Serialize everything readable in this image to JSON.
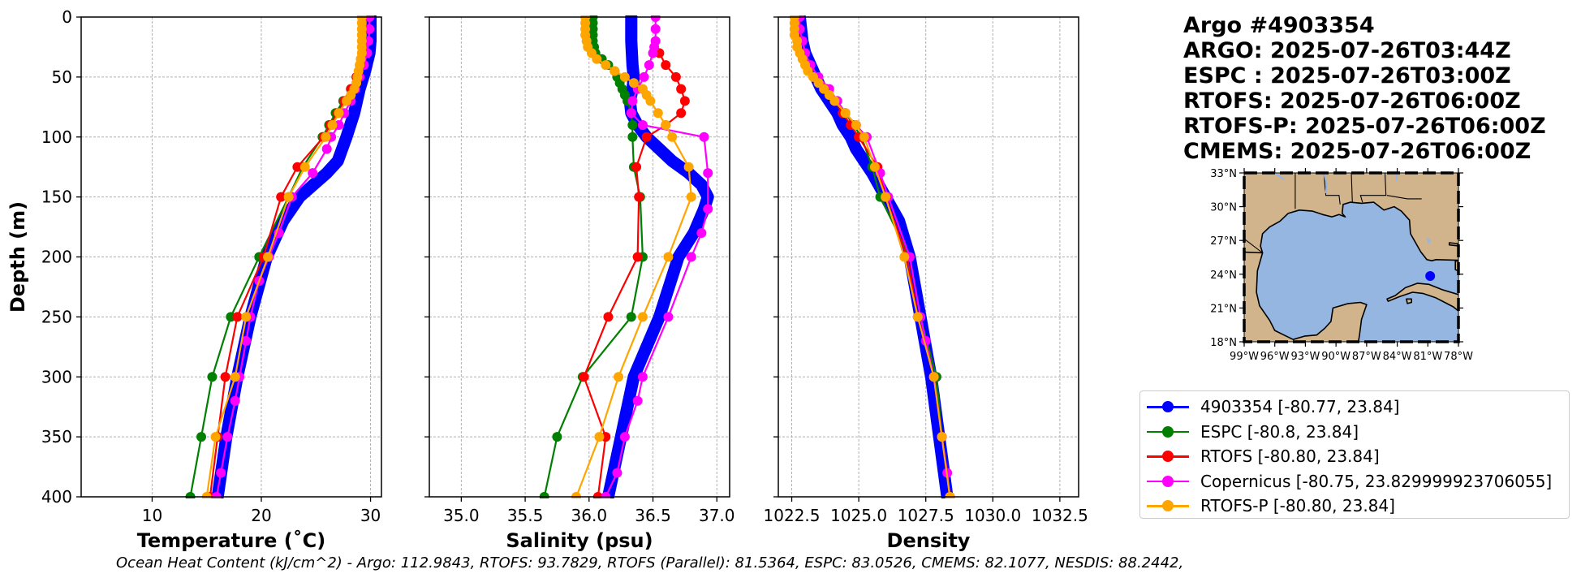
{
  "title": {
    "lines": [
      "Argo #4903354",
      "ARGO: 2025-07-26T03:44Z",
      "ESPC : 2025-07-26T03:00Z",
      "RTOFS: 2025-07-26T06:00Z",
      "RTOFS-P: 2025-07-26T06:00Z",
      "CMEMS: 2025-07-26T06:00Z"
    ]
  },
  "legend": {
    "items": [
      {
        "label": "4903354 [-80.77, 23.84]",
        "color": "#0000ff"
      },
      {
        "label": "ESPC [-80.8, 23.84]",
        "color": "#008000"
      },
      {
        "label": "RTOFS [-80.80, 23.84]",
        "color": "#ff0000"
      },
      {
        "label": "Copernicus [-80.75, 23.829999923706055]",
        "color": "#ff00ff"
      },
      {
        "label": "RTOFS-P [-80.80, 23.84]",
        "color": "#ffa500"
      }
    ]
  },
  "footer": {
    "ohc_text": "Ocean Heat Content (kJ/cm^2) - Argo: 112.9843,  RTOFS: 93.7829,  RTOFS (Parallel): 81.5364,  ESPC: 83.0526,  CMEMS: 82.1077,  NESDIS: 88.2442,"
  },
  "map": {
    "lat_labels": [
      "33°N",
      "30°N",
      "27°N",
      "24°N",
      "21°N",
      "18°N"
    ],
    "lat_values": [
      33,
      30,
      27,
      24,
      21,
      18
    ],
    "lon_labels": [
      "99°W",
      "96°W",
      "93°W",
      "90°W",
      "87°W",
      "84°W",
      "81°W",
      "78°W"
    ],
    "lon_values": [
      -99,
      -96,
      -93,
      -90,
      -87,
      -84,
      -81,
      -78
    ],
    "marker": {
      "lon": -80.77,
      "lat": 23.84,
      "color": "#0000ff"
    },
    "ocean_color": "#95b6e0",
    "land_color": "#d2b48c"
  },
  "chart_data": [
    {
      "type": "line",
      "xlabel": "Temperature (˚C)",
      "ylabel": "Depth (m)",
      "xlim": [
        3.5,
        31
      ],
      "ylim": [
        400,
        0
      ],
      "xticks": [
        10,
        20,
        30
      ],
      "xtick_labels": [
        "10",
        "20",
        "30"
      ],
      "yticks": [
        0,
        50,
        100,
        150,
        200,
        250,
        300,
        350,
        400
      ],
      "ytick_labels": [
        "0",
        "50",
        "100",
        "150",
        "200",
        "250",
        "300",
        "350",
        "400"
      ],
      "series": [
        {
          "name": "4903354",
          "color": "#0000ff",
          "dense": true,
          "depth": [
            0,
            20,
            30,
            45,
            60,
            80,
            100,
            120,
            130,
            150,
            170,
            200,
            250,
            300,
            350,
            400
          ],
          "values": [
            30.0,
            30.0,
            29.9,
            29.5,
            29.0,
            28.5,
            27.8,
            27.0,
            26.0,
            23.5,
            22.0,
            20.5,
            19.0,
            17.8,
            16.8,
            16.0
          ]
        },
        {
          "name": "ESPC",
          "color": "#008000",
          "dense": false,
          "depth": [
            0,
            10,
            20,
            30,
            40,
            50,
            60,
            70,
            80,
            90,
            100,
            125,
            150,
            200,
            250,
            300,
            350,
            400
          ],
          "values": [
            29.5,
            29.5,
            29.5,
            29.4,
            29.2,
            28.8,
            28.2,
            27.5,
            26.8,
            26.2,
            25.6,
            23.8,
            22.5,
            19.8,
            17.2,
            15.5,
            14.5,
            13.5
          ]
        },
        {
          "name": "RTOFS",
          "color": "#ff0000",
          "dense": false,
          "depth": [
            0,
            10,
            20,
            30,
            40,
            50,
            60,
            70,
            80,
            90,
            100,
            125,
            150,
            200,
            250,
            300,
            350,
            400
          ],
          "values": [
            29.5,
            29.5,
            29.4,
            29.3,
            29.1,
            28.7,
            28.2,
            27.6,
            27.0,
            26.3,
            25.7,
            23.3,
            21.8,
            20.2,
            17.8,
            16.7,
            16.0,
            15.3
          ]
        },
        {
          "name": "Copernicus",
          "color": "#ff00ff",
          "dense": false,
          "depth": [
            0,
            10,
            20,
            30,
            40,
            50,
            60,
            70,
            80,
            90,
            100,
            110,
            130,
            150,
            180,
            200,
            220,
            250,
            270,
            300,
            320,
            350,
            380,
            400
          ],
          "values": [
            29.9,
            29.9,
            29.8,
            29.7,
            29.4,
            29.0,
            28.6,
            28.2,
            27.6,
            27.1,
            26.4,
            26.0,
            24.7,
            22.8,
            21.6,
            20.7,
            19.8,
            19.0,
            18.6,
            18.0,
            17.6,
            16.9,
            16.3,
            15.9
          ]
        },
        {
          "name": "RTOFS-P",
          "color": "#ffa500",
          "dense": false,
          "depth": [
            0,
            5,
            10,
            15,
            20,
            25,
            30,
            35,
            40,
            45,
            50,
            55,
            60,
            65,
            70,
            80,
            90,
            100,
            125,
            150,
            200,
            250,
            300,
            350,
            400
          ],
          "values": [
            29.2,
            29.2,
            29.2,
            29.2,
            29.2,
            29.2,
            29.2,
            29.1,
            29.0,
            28.9,
            28.8,
            28.7,
            28.5,
            28.2,
            27.8,
            27.1,
            26.5,
            25.9,
            24.0,
            22.5,
            20.6,
            18.6,
            17.6,
            15.8,
            15.0
          ]
        }
      ]
    },
    {
      "type": "line",
      "xlabel": "Salinity (psu)",
      "ylabel": "",
      "xlim": [
        34.75,
        37.1
      ],
      "ylim": [
        400,
        0
      ],
      "xticks": [
        35.0,
        35.5,
        36.0,
        36.5,
        37.0
      ],
      "xtick_labels": [
        "35.0",
        "35.5",
        "36.0",
        "36.5",
        "37.0"
      ],
      "yticks": [
        0,
        50,
        100,
        150,
        200,
        250,
        300,
        350,
        400
      ],
      "ytick_labels": [
        "",
        "",
        "",
        "",
        "",
        "",
        "",
        "",
        ""
      ],
      "series": [
        {
          "name": "4903354",
          "color": "#0000ff",
          "dense": true,
          "depth": [
            0,
            20,
            40,
            50,
            60,
            70,
            80,
            90,
            100,
            110,
            120,
            130,
            140,
            150,
            160,
            180,
            200,
            250,
            300,
            350,
            400
          ],
          "values": [
            36.33,
            36.33,
            36.34,
            36.35,
            36.34,
            36.32,
            36.33,
            36.38,
            36.45,
            36.55,
            36.65,
            36.78,
            36.88,
            36.93,
            36.9,
            36.82,
            36.7,
            36.55,
            36.35,
            36.25,
            36.15
          ]
        },
        {
          "name": "ESPC",
          "color": "#008000",
          "dense": false,
          "depth": [
            0,
            5,
            10,
            15,
            20,
            25,
            30,
            35,
            40,
            45,
            50,
            55,
            60,
            65,
            70,
            80,
            90,
            100,
            125,
            150,
            200,
            250,
            300,
            350,
            400
          ],
          "values": [
            36.03,
            36.03,
            36.03,
            36.03,
            36.03,
            36.04,
            36.05,
            36.1,
            36.15,
            36.2,
            36.22,
            36.24,
            36.26,
            36.28,
            36.3,
            36.33,
            36.34,
            36.34,
            36.35,
            36.4,
            36.42,
            36.33,
            35.95,
            35.75,
            35.65
          ]
        },
        {
          "name": "RTOFS",
          "color": "#ff0000",
          "dense": false,
          "depth": [
            30,
            40,
            50,
            60,
            70,
            80,
            90,
            100,
            125,
            150,
            200,
            250,
            300,
            350,
            400
          ],
          "values": [
            36.55,
            36.6,
            36.68,
            36.72,
            36.75,
            36.72,
            36.6,
            36.45,
            36.37,
            36.39,
            36.38,
            36.15,
            35.96,
            36.13,
            36.07
          ]
        },
        {
          "name": "Copernicus",
          "color": "#ff00ff",
          "dense": false,
          "depth": [
            0,
            10,
            20,
            25,
            30,
            40,
            50,
            60,
            70,
            80,
            90,
            100,
            130,
            160,
            180,
            200,
            250,
            300,
            320,
            350,
            380,
            400
          ],
          "values": [
            36.52,
            36.52,
            36.52,
            36.51,
            36.5,
            36.47,
            36.43,
            36.38,
            36.34,
            36.33,
            36.42,
            36.9,
            36.93,
            36.93,
            36.88,
            36.8,
            36.62,
            36.42,
            36.38,
            36.28,
            36.22,
            36.13
          ]
        },
        {
          "name": "RTOFS-P",
          "color": "#ffa500",
          "dense": false,
          "depth": [
            0,
            5,
            10,
            15,
            20,
            25,
            30,
            35,
            40,
            45,
            50,
            55,
            60,
            65,
            70,
            80,
            90,
            100,
            125,
            150,
            200,
            250,
            300,
            350,
            400
          ],
          "values": [
            35.97,
            35.97,
            35.97,
            35.97,
            35.98,
            35.99,
            36.02,
            36.06,
            36.13,
            36.2,
            36.28,
            36.35,
            36.42,
            36.45,
            36.48,
            36.54,
            36.6,
            36.65,
            36.78,
            36.8,
            36.62,
            36.42,
            36.23,
            36.08,
            35.9
          ]
        }
      ]
    },
    {
      "type": "line",
      "xlabel": "Density",
      "ylabel": "",
      "xlim": [
        1022.0,
        1033.2
      ],
      "ylim": [
        400,
        0
      ],
      "xticks": [
        1022.5,
        1025.0,
        1027.5,
        1030.0,
        1032.5
      ],
      "xtick_labels": [
        "1022.5",
        "1025.0",
        "1027.5",
        "1030.0",
        "1032.5"
      ],
      "yticks": [
        0,
        50,
        100,
        150,
        200,
        250,
        300,
        350,
        400
      ],
      "ytick_labels": [
        "",
        "",
        "",
        "",
        "",
        "",
        "",
        "",
        ""
      ],
      "series": [
        {
          "name": "4903354",
          "color": "#0000ff",
          "dense": true,
          "depth": [
            0,
            20,
            30,
            40,
            50,
            60,
            70,
            80,
            90,
            100,
            110,
            120,
            130,
            150,
            170,
            200,
            250,
            300,
            350,
            400
          ],
          "values": [
            1022.8,
            1022.9,
            1023.0,
            1023.2,
            1023.4,
            1023.6,
            1023.9,
            1024.2,
            1024.4,
            1024.7,
            1024.9,
            1025.2,
            1025.5,
            1026.0,
            1026.5,
            1026.9,
            1027.3,
            1027.7,
            1028.0,
            1028.3
          ]
        },
        {
          "name": "ESPC",
          "color": "#008000",
          "dense": false,
          "depth": [
            0,
            10,
            20,
            30,
            40,
            50,
            60,
            70,
            80,
            90,
            100,
            125,
            150,
            200,
            250,
            300,
            350,
            400
          ],
          "values": [
            1022.7,
            1022.7,
            1022.8,
            1022.9,
            1023.1,
            1023.4,
            1023.8,
            1024.2,
            1024.5,
            1024.8,
            1025.1,
            1025.5,
            1025.8,
            1026.9,
            1027.3,
            1027.9,
            1028.1,
            1028.4
          ]
        },
        {
          "name": "RTOFS",
          "color": "#ff0000",
          "dense": false,
          "depth": [
            0,
            10,
            20,
            30,
            40,
            50,
            60,
            70,
            80,
            90,
            100,
            125,
            150,
            200,
            250,
            300,
            350,
            400
          ],
          "values": [
            1022.7,
            1022.7,
            1022.8,
            1022.9,
            1023.1,
            1023.4,
            1023.8,
            1024.1,
            1024.4,
            1024.7,
            1025.0,
            1025.7,
            1026.0,
            1026.8,
            1027.2,
            1027.8,
            1028.1,
            1028.4
          ]
        },
        {
          "name": "Copernicus",
          "color": "#ff00ff",
          "dense": false,
          "depth": [
            0,
            10,
            20,
            30,
            40,
            50,
            60,
            70,
            80,
            90,
            100,
            130,
            150,
            200,
            250,
            270,
            300,
            350,
            380,
            400
          ],
          "values": [
            1022.8,
            1022.8,
            1022.9,
            1023.0,
            1023.2,
            1023.5,
            1023.9,
            1024.2,
            1024.5,
            1024.9,
            1025.3,
            1025.8,
            1026.1,
            1026.9,
            1027.3,
            1027.5,
            1027.8,
            1028.1,
            1028.3,
            1028.4
          ]
        },
        {
          "name": "RTOFS-P",
          "color": "#ffa500",
          "dense": false,
          "depth": [
            0,
            5,
            10,
            15,
            20,
            25,
            30,
            35,
            40,
            45,
            50,
            55,
            60,
            65,
            70,
            80,
            90,
            100,
            125,
            150,
            200,
            250,
            300,
            350,
            400
          ],
          "values": [
            1022.6,
            1022.6,
            1022.6,
            1022.6,
            1022.7,
            1022.7,
            1022.8,
            1022.9,
            1023.0,
            1023.1,
            1023.3,
            1023.5,
            1023.7,
            1023.9,
            1024.1,
            1024.5,
            1024.9,
            1025.2,
            1025.6,
            1026.0,
            1026.7,
            1027.2,
            1027.8,
            1028.1,
            1028.4
          ]
        }
      ]
    }
  ]
}
